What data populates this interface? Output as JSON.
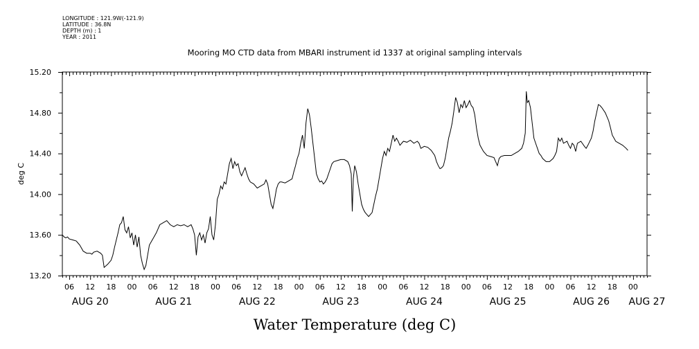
{
  "header": {
    "longitude": "LONGITUDE : 121.9W(-121.9)",
    "latitude": "LATITUDE : 36.8N",
    "depth": "DEPTH (m) : 1",
    "year": "YEAR : 2011",
    "title": "Mooring MO CTD data from MBARI instrument id 1337 at original sampling intervals"
  },
  "chart_data": {
    "type": "line",
    "title": "Mooring MO CTD data from MBARI instrument id 1337 at original sampling intervals",
    "xlabel": "Water Temperature (deg C)",
    "ylabel": "deg C",
    "ylim": [
      13.2,
      15.2
    ],
    "yticks": [
      "13.20",
      "13.60",
      "14.00",
      "14.40",
      "14.80",
      "15.20"
    ],
    "x_unit": "hours since 2011-08-20 00:00",
    "xlim": [
      4,
      172
    ],
    "hour_ticks": [
      {
        "h": 6,
        "label": "06"
      },
      {
        "h": 12,
        "label": "12"
      },
      {
        "h": 18,
        "label": "18"
      },
      {
        "h": 24,
        "label": "00"
      },
      {
        "h": 30,
        "label": "06"
      },
      {
        "h": 36,
        "label": "12"
      },
      {
        "h": 42,
        "label": "18"
      },
      {
        "h": 48,
        "label": "00"
      },
      {
        "h": 54,
        "label": "06"
      },
      {
        "h": 60,
        "label": "12"
      },
      {
        "h": 66,
        "label": "18"
      },
      {
        "h": 72,
        "label": "00"
      },
      {
        "h": 78,
        "label": "06"
      },
      {
        "h": 84,
        "label": "12"
      },
      {
        "h": 90,
        "label": "18"
      },
      {
        "h": 96,
        "label": "00"
      },
      {
        "h": 102,
        "label": "06"
      },
      {
        "h": 108,
        "label": "12"
      },
      {
        "h": 114,
        "label": "18"
      },
      {
        "h": 120,
        "label": "00"
      },
      {
        "h": 126,
        "label": "06"
      },
      {
        "h": 132,
        "label": "12"
      },
      {
        "h": 138,
        "label": "18"
      },
      {
        "h": 144,
        "label": "00"
      },
      {
        "h": 150,
        "label": "06"
      },
      {
        "h": 156,
        "label": "12"
      },
      {
        "h": 162,
        "label": "18"
      },
      {
        "h": 168,
        "label": "00"
      }
    ],
    "day_labels": [
      {
        "h": 12,
        "label": "AUG 20"
      },
      {
        "h": 36,
        "label": "AUG 21"
      },
      {
        "h": 60,
        "label": "AUG 22"
      },
      {
        "h": 84,
        "label": "AUG 23"
      },
      {
        "h": 108,
        "label": "AUG 24"
      },
      {
        "h": 132,
        "label": "AUG 25"
      },
      {
        "h": 156,
        "label": "AUG 26"
      },
      {
        "h": 172,
        "label": "AUG 27"
      }
    ],
    "series": [
      {
        "points": [
          [
            4.0,
            13.6
          ],
          [
            4.5,
            13.58
          ],
          [
            5.0,
            13.57
          ],
          [
            5.5,
            13.58
          ],
          [
            6.0,
            13.56
          ],
          [
            7.0,
            13.55
          ],
          [
            8.0,
            13.54
          ],
          [
            8.5,
            13.52
          ],
          [
            9.0,
            13.5
          ],
          [
            9.5,
            13.47
          ],
          [
            10.0,
            13.44
          ],
          [
            11.0,
            13.42
          ],
          [
            12.0,
            13.42
          ],
          [
            12.5,
            13.41
          ],
          [
            13.0,
            13.43
          ],
          [
            14.0,
            13.44
          ],
          [
            15.0,
            13.42
          ],
          [
            15.5,
            13.4
          ],
          [
            16.0,
            13.28
          ],
          [
            17.0,
            13.31
          ],
          [
            18.0,
            13.35
          ],
          [
            18.5,
            13.4
          ],
          [
            19.0,
            13.48
          ],
          [
            19.5,
            13.55
          ],
          [
            20.0,
            13.62
          ],
          [
            20.5,
            13.7
          ],
          [
            21.0,
            13.72
          ],
          [
            21.5,
            13.78
          ],
          [
            22.0,
            13.65
          ],
          [
            22.5,
            13.62
          ],
          [
            23.0,
            13.68
          ],
          [
            23.5,
            13.57
          ],
          [
            24.0,
            13.62
          ],
          [
            24.5,
            13.5
          ],
          [
            25.0,
            13.6
          ],
          [
            25.5,
            13.48
          ],
          [
            26.0,
            13.58
          ],
          [
            26.5,
            13.4
          ],
          [
            27.0,
            13.32
          ],
          [
            27.5,
            13.26
          ],
          [
            28.0,
            13.3
          ],
          [
            28.5,
            13.4
          ],
          [
            29.0,
            13.5
          ],
          [
            30.0,
            13.56
          ],
          [
            31.0,
            13.62
          ],
          [
            32.0,
            13.7
          ],
          [
            33.0,
            13.72
          ],
          [
            34.0,
            13.74
          ],
          [
            35.0,
            13.7
          ],
          [
            36.0,
            13.68
          ],
          [
            37.0,
            13.7
          ],
          [
            38.0,
            13.69
          ],
          [
            39.0,
            13.7
          ],
          [
            40.0,
            13.68
          ],
          [
            41.0,
            13.7
          ],
          [
            41.5,
            13.66
          ],
          [
            42.0,
            13.6
          ],
          [
            42.5,
            13.4
          ],
          [
            43.0,
            13.58
          ],
          [
            43.5,
            13.62
          ],
          [
            44.0,
            13.55
          ],
          [
            44.5,
            13.6
          ],
          [
            45.0,
            13.52
          ],
          [
            45.5,
            13.62
          ],
          [
            46.0,
            13.66
          ],
          [
            46.5,
            13.78
          ],
          [
            47.0,
            13.6
          ],
          [
            47.5,
            13.55
          ],
          [
            48.0,
            13.7
          ],
          [
            48.5,
            13.95
          ],
          [
            49.0,
            14.0
          ],
          [
            49.5,
            14.08
          ],
          [
            50.0,
            14.05
          ],
          [
            50.5,
            14.12
          ],
          [
            51.0,
            14.1
          ],
          [
            51.5,
            14.2
          ],
          [
            52.0,
            14.3
          ],
          [
            52.5,
            14.35
          ],
          [
            53.0,
            14.25
          ],
          [
            53.5,
            14.32
          ],
          [
            54.0,
            14.28
          ],
          [
            54.5,
            14.3
          ],
          [
            55.0,
            14.22
          ],
          [
            55.5,
            14.18
          ],
          [
            56.0,
            14.22
          ],
          [
            56.5,
            14.26
          ],
          [
            57.0,
            14.2
          ],
          [
            57.5,
            14.15
          ],
          [
            58.0,
            14.12
          ],
          [
            59.0,
            14.1
          ],
          [
            60.0,
            14.06
          ],
          [
            61.0,
            14.08
          ],
          [
            62.0,
            14.1
          ],
          [
            62.5,
            14.14
          ],
          [
            63.0,
            14.1
          ],
          [
            63.5,
            14.0
          ],
          [
            64.0,
            13.9
          ],
          [
            64.5,
            13.86
          ],
          [
            65.0,
            13.95
          ],
          [
            65.5,
            14.05
          ],
          [
            66.0,
            14.1
          ],
          [
            66.5,
            14.12
          ],
          [
            67.0,
            14.12
          ],
          [
            68.0,
            14.11
          ],
          [
            69.0,
            14.13
          ],
          [
            70.0,
            14.15
          ],
          [
            70.5,
            14.22
          ],
          [
            71.0,
            14.28
          ],
          [
            71.5,
            14.35
          ],
          [
            72.0,
            14.4
          ],
          [
            72.5,
            14.5
          ],
          [
            73.0,
            14.58
          ],
          [
            73.5,
            14.45
          ],
          [
            74.0,
            14.7
          ],
          [
            74.5,
            14.84
          ],
          [
            75.0,
            14.78
          ],
          [
            75.5,
            14.65
          ],
          [
            76.0,
            14.5
          ],
          [
            76.5,
            14.35
          ],
          [
            77.0,
            14.2
          ],
          [
            77.5,
            14.15
          ],
          [
            78.0,
            14.12
          ],
          [
            78.5,
            14.13
          ],
          [
            79.0,
            14.1
          ],
          [
            79.5,
            14.12
          ],
          [
            80.0,
            14.15
          ],
          [
            81.0,
            14.25
          ],
          [
            81.5,
            14.3
          ],
          [
            82.0,
            14.32
          ],
          [
            83.0,
            14.33
          ],
          [
            84.0,
            14.34
          ],
          [
            85.0,
            14.34
          ],
          [
            86.0,
            14.32
          ],
          [
            86.5,
            14.28
          ],
          [
            87.0,
            14.2
          ],
          [
            87.3,
            13.83
          ],
          [
            87.6,
            14.15
          ],
          [
            88.0,
            14.28
          ],
          [
            88.5,
            14.22
          ],
          [
            89.0,
            14.1
          ],
          [
            89.5,
            14.0
          ],
          [
            90.0,
            13.9
          ],
          [
            90.5,
            13.85
          ],
          [
            91.0,
            13.82
          ],
          [
            91.5,
            13.8
          ],
          [
            92.0,
            13.78
          ],
          [
            92.5,
            13.8
          ],
          [
            93.0,
            13.82
          ],
          [
            93.5,
            13.9
          ],
          [
            94.0,
            13.98
          ],
          [
            94.5,
            14.05
          ],
          [
            95.0,
            14.15
          ],
          [
            95.5,
            14.25
          ],
          [
            96.0,
            14.35
          ],
          [
            96.5,
            14.42
          ],
          [
            97.0,
            14.38
          ],
          [
            97.5,
            14.45
          ],
          [
            98.0,
            14.42
          ],
          [
            98.5,
            14.5
          ],
          [
            99.0,
            14.58
          ],
          [
            99.5,
            14.52
          ],
          [
            100.0,
            14.55
          ],
          [
            100.5,
            14.52
          ],
          [
            101.0,
            14.48
          ],
          [
            102.0,
            14.52
          ],
          [
            103.0,
            14.51
          ],
          [
            104.0,
            14.53
          ],
          [
            105.0,
            14.5
          ],
          [
            106.0,
            14.52
          ],
          [
            106.5,
            14.5
          ],
          [
            107.0,
            14.45
          ],
          [
            108.0,
            14.47
          ],
          [
            109.0,
            14.46
          ],
          [
            110.0,
            14.43
          ],
          [
            111.0,
            14.38
          ],
          [
            111.5,
            14.32
          ],
          [
            112.0,
            14.28
          ],
          [
            112.5,
            14.25
          ],
          [
            113.0,
            14.26
          ],
          [
            113.5,
            14.28
          ],
          [
            114.0,
            14.35
          ],
          [
            114.5,
            14.45
          ],
          [
            115.0,
            14.55
          ],
          [
            115.5,
            14.62
          ],
          [
            116.0,
            14.7
          ],
          [
            116.5,
            14.82
          ],
          [
            117.0,
            14.95
          ],
          [
            117.5,
            14.9
          ],
          [
            118.0,
            14.8
          ],
          [
            118.5,
            14.88
          ],
          [
            119.0,
            14.85
          ],
          [
            119.5,
            14.92
          ],
          [
            120.0,
            14.85
          ],
          [
            120.5,
            14.88
          ],
          [
            121.0,
            14.92
          ],
          [
            121.5,
            14.87
          ],
          [
            122.0,
            14.85
          ],
          [
            122.5,
            14.78
          ],
          [
            123.0,
            14.65
          ],
          [
            123.5,
            14.55
          ],
          [
            124.0,
            14.48
          ],
          [
            124.5,
            14.45
          ],
          [
            125.0,
            14.42
          ],
          [
            125.5,
            14.4
          ],
          [
            126.0,
            14.38
          ],
          [
            127.0,
            14.37
          ],
          [
            128.0,
            14.36
          ],
          [
            128.5,
            14.32
          ],
          [
            129.0,
            14.28
          ],
          [
            129.5,
            14.35
          ],
          [
            130.0,
            14.37
          ],
          [
            131.0,
            14.38
          ],
          [
            132.0,
            14.38
          ],
          [
            132.5,
            14.38
          ],
          [
            133.0,
            14.38
          ],
          [
            134.0,
            14.4
          ],
          [
            135.0,
            14.42
          ],
          [
            136.0,
            14.45
          ],
          [
            136.5,
            14.5
          ],
          [
            137.0,
            14.6
          ],
          [
            137.3,
            15.01
          ],
          [
            137.6,
            14.9
          ],
          [
            138.0,
            14.92
          ],
          [
            138.5,
            14.85
          ],
          [
            139.0,
            14.7
          ],
          [
            139.5,
            14.55
          ],
          [
            140.0,
            14.5
          ],
          [
            140.5,
            14.45
          ],
          [
            141.0,
            14.4
          ],
          [
            141.5,
            14.38
          ],
          [
            142.0,
            14.35
          ],
          [
            143.0,
            14.32
          ],
          [
            144.0,
            14.32
          ],
          [
            145.0,
            14.35
          ],
          [
            145.5,
            14.38
          ],
          [
            146.0,
            14.42
          ],
          [
            146.5,
            14.55
          ],
          [
            147.0,
            14.52
          ],
          [
            147.5,
            14.55
          ],
          [
            148.0,
            14.5
          ],
          [
            149.0,
            14.52
          ],
          [
            149.5,
            14.48
          ],
          [
            150.0,
            14.45
          ],
          [
            150.5,
            14.5
          ],
          [
            151.0,
            14.48
          ],
          [
            151.5,
            14.42
          ],
          [
            152.0,
            14.5
          ],
          [
            153.0,
            14.52
          ],
          [
            154.0,
            14.47
          ],
          [
            154.5,
            14.45
          ],
          [
            155.0,
            14.48
          ],
          [
            156.0,
            14.55
          ],
          [
            156.5,
            14.62
          ],
          [
            157.0,
            14.72
          ],
          [
            157.5,
            14.8
          ],
          [
            158.0,
            14.88
          ],
          [
            158.5,
            14.87
          ],
          [
            159.0,
            14.85
          ],
          [
            160.0,
            14.8
          ],
          [
            161.0,
            14.72
          ],
          [
            161.5,
            14.65
          ],
          [
            162.0,
            14.58
          ],
          [
            162.5,
            14.55
          ],
          [
            163.0,
            14.52
          ],
          [
            164.0,
            14.5
          ],
          [
            165.0,
            14.48
          ],
          [
            166.0,
            14.45
          ],
          [
            166.5,
            14.43
          ]
        ]
      }
    ]
  }
}
